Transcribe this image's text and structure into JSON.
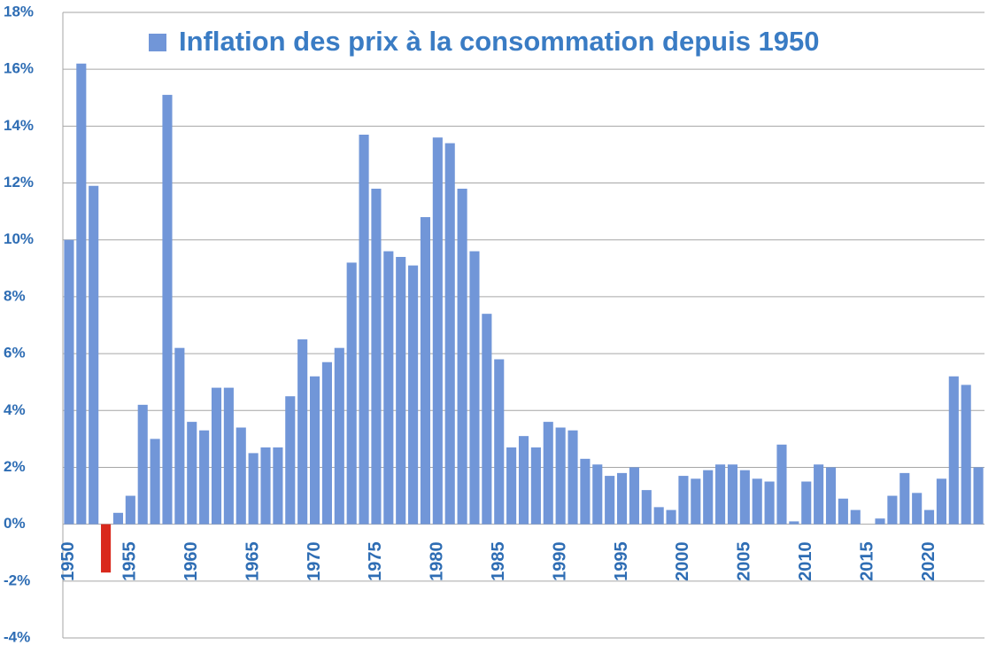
{
  "chart_data": {
    "type": "bar",
    "categories": [
      1950,
      null,
      null,
      null,
      null,
      1955,
      null,
      null,
      null,
      null,
      1960,
      null,
      null,
      null,
      null,
      1965,
      null,
      null,
      null,
      null,
      1970,
      null,
      null,
      null,
      null,
      1975,
      null,
      null,
      null,
      null,
      1980,
      null,
      null,
      null,
      null,
      1985,
      null,
      null,
      null,
      null,
      1990,
      null,
      null,
      null,
      null,
      1995,
      null,
      null,
      null,
      null,
      2000,
      null,
      null,
      null,
      null,
      2005,
      null,
      null,
      null,
      null,
      2010,
      null,
      null,
      null,
      null,
      2015,
      null,
      null,
      null,
      null,
      2020,
      null,
      null,
      null,
      null
    ],
    "series": [
      {
        "name": "Inflation des prix à la consommation depuis 1950",
        "color": "#7196d8",
        "values": [
          10.0,
          16.2,
          11.9,
          -1.7,
          0.4,
          1.0,
          4.2,
          3.0,
          15.1,
          6.2,
          3.6,
          3.3,
          4.8,
          4.8,
          3.4,
          2.5,
          2.7,
          2.7,
          4.5,
          6.5,
          5.2,
          5.7,
          6.2,
          9.2,
          13.7,
          11.8,
          9.6,
          9.4,
          9.1,
          10.8,
          13.6,
          13.4,
          11.8,
          9.6,
          7.4,
          5.8,
          2.7,
          3.1,
          2.7,
          3.6,
          3.4,
          3.3,
          2.3,
          2.1,
          1.7,
          1.8,
          2.0,
          1.2,
          0.6,
          0.5,
          1.7,
          1.6,
          1.9,
          2.1,
          2.1,
          1.9,
          1.6,
          1.5,
          2.8,
          0.1,
          1.5,
          2.1,
          2.0,
          0.9,
          0.5,
          0.0,
          0.2,
          1.0,
          1.8,
          1.1,
          0.5,
          1.6,
          5.2,
          4.9,
          2.0
        ]
      }
    ],
    "negative_color": "#d9291c",
    "ylim": [
      -4,
      18
    ],
    "yticks": [
      {
        "value": -4,
        "label": "-4%"
      },
      {
        "value": -2,
        "label": "-2%"
      },
      {
        "value": 0,
        "label": "0%"
      },
      {
        "value": 2,
        "label": "2%"
      },
      {
        "value": 4,
        "label": "4%"
      },
      {
        "value": 6,
        "label": "6%"
      },
      {
        "value": 8,
        "label": "8%"
      },
      {
        "value": 10,
        "label": "10%"
      },
      {
        "value": 12,
        "label": "12%"
      },
      {
        "value": 14,
        "label": "14%"
      },
      {
        "value": 16,
        "label": "16%"
      },
      {
        "value": 18,
        "label": "18%"
      }
    ],
    "grid": true
  }
}
